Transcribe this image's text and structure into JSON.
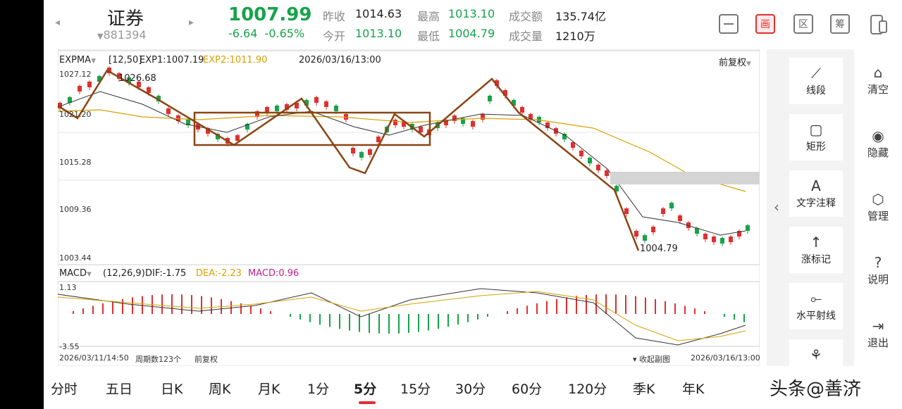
{
  "quote": {
    "name": "证券",
    "code": "881394",
    "price": "1007.99",
    "change": "-6.64",
    "change_pct": "-0.65%",
    "prev_close_label": "昨收",
    "prev_close": "1014.63",
    "open_label": "今开",
    "open": "1013.10",
    "high_label": "最高",
    "high": "1013.10",
    "low_label": "最低",
    "low": "1004.79",
    "turnover_label": "成交额",
    "turnover": "135.74亿",
    "volume_label": "成交量",
    "volume": "1210万"
  },
  "toolbar": {
    "icons": [
      "minimize-icon",
      "draw-icon",
      "interval-icon",
      "chip-icon",
      "device-switch-icon"
    ],
    "draw_glyph": "画",
    "interval_glyph": "区",
    "chip_glyph": "筹",
    "accent": "#e03030"
  },
  "main_chart": {
    "indicator": "EXPMA",
    "params": "[12,50]",
    "exp1": "EXP1:1007.19",
    "exp2": "EXP2:1011.90",
    "datetime": "2026/03/16/13:00",
    "adjust": "前复权",
    "y_labels": [
      "1027.12",
      "1021.20",
      "1015.28",
      "1009.36",
      "1003.44"
    ],
    "high_marker": "1026.68",
    "low_marker": "1004.79"
  },
  "macd": {
    "indicator": "MACD",
    "params": "(12,26,9)",
    "dif": "DIF:-1.75",
    "dea": "DEA:-2.23",
    "macd": "MACD:0.96",
    "y_top": "1.13",
    "y_bottom": "-3.55",
    "collapse": "收起副图"
  },
  "footer": {
    "start": "2026/03/11/14:50",
    "periods": "周期数123个",
    "adjust": "前复权",
    "end": "2026/03/16/13:00"
  },
  "side_tools": [
    {
      "icon": "segment-icon",
      "glyph": "⟋",
      "label": "线段"
    },
    {
      "icon": "rectangle-icon",
      "glyph": "▢",
      "label": "矩形"
    },
    {
      "icon": "text-annotation-icon",
      "glyph": "A",
      "label": "文字注释"
    },
    {
      "icon": "up-mark-icon",
      "glyph": "↑",
      "label": "涨标记"
    },
    {
      "icon": "horizontal-ray-icon",
      "glyph": "⟜",
      "label": "水平射线"
    }
  ],
  "right_menu": [
    {
      "icon": "clear-icon",
      "glyph": "⌂",
      "label": "清空"
    },
    {
      "icon": "hide-icon",
      "glyph": "◉",
      "label": "隐藏"
    },
    {
      "icon": "manage-icon",
      "glyph": "⬡",
      "label": "管理"
    },
    {
      "icon": "help-icon",
      "glyph": "?",
      "label": "说明"
    },
    {
      "icon": "exit-icon",
      "glyph": "⇥",
      "label": "退出"
    }
  ],
  "tabs": [
    "分时",
    "五日",
    "日K",
    "周K",
    "月K",
    "1分",
    "5分",
    "15分",
    "30分",
    "60分",
    "120分",
    "季K",
    "年K"
  ],
  "active_tab": "5分",
  "watermark": "头条@善济"
}
